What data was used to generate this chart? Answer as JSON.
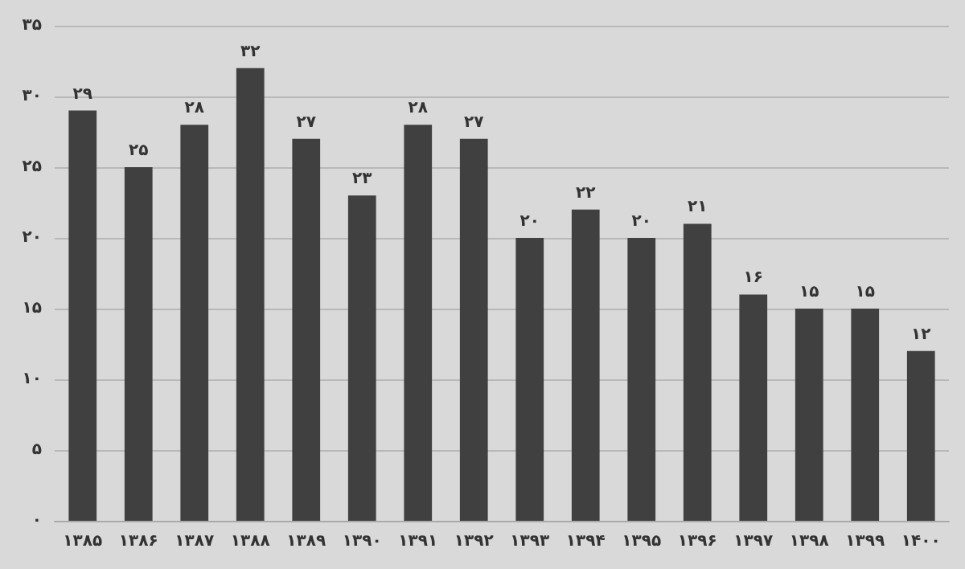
{
  "chart_data": {
    "type": "bar",
    "categories": [
      "۱۳۸۵",
      "۱۳۸۶",
      "۱۳۸۷",
      "۱۳۸۸",
      "۱۳۸۹",
      "۱۳۹۰",
      "۱۳۹۱",
      "۱۳۹۲",
      "۱۳۹۳",
      "۱۳۹۴",
      "۱۳۹۵",
      "۱۳۹۶",
      "۱۳۹۷",
      "۱۳۹۸",
      "۱۳۹۹",
      "۱۴۰۰"
    ],
    "values": [
      29,
      25,
      28,
      32,
      27,
      23,
      28,
      27,
      20,
      22,
      20,
      21,
      16,
      15,
      15,
      12
    ],
    "value_labels": [
      "۲۹",
      "۲۵",
      "۲۸",
      "۳۲",
      "۲۷",
      "۲۳",
      "۲۸",
      "۲۷",
      "۲۰",
      "۲۲",
      "۲۰",
      "۲۱",
      "۱۶",
      "۱۵",
      "۱۵",
      "۱۲"
    ],
    "color": "#404040",
    "ylim": [
      0,
      35
    ],
    "yticks": [
      {
        "value": 0,
        "label": "۰"
      },
      {
        "value": 5,
        "label": "۵"
      },
      {
        "value": 10,
        "label": "۱۰"
      },
      {
        "value": 15,
        "label": "۱۵"
      },
      {
        "value": 20,
        "label": "۲۰"
      },
      {
        "value": 25,
        "label": "۲۵"
      },
      {
        "value": 30,
        "label": "۳۰"
      },
      {
        "value": 35,
        "label": "۳۵"
      }
    ],
    "grid": "y"
  }
}
